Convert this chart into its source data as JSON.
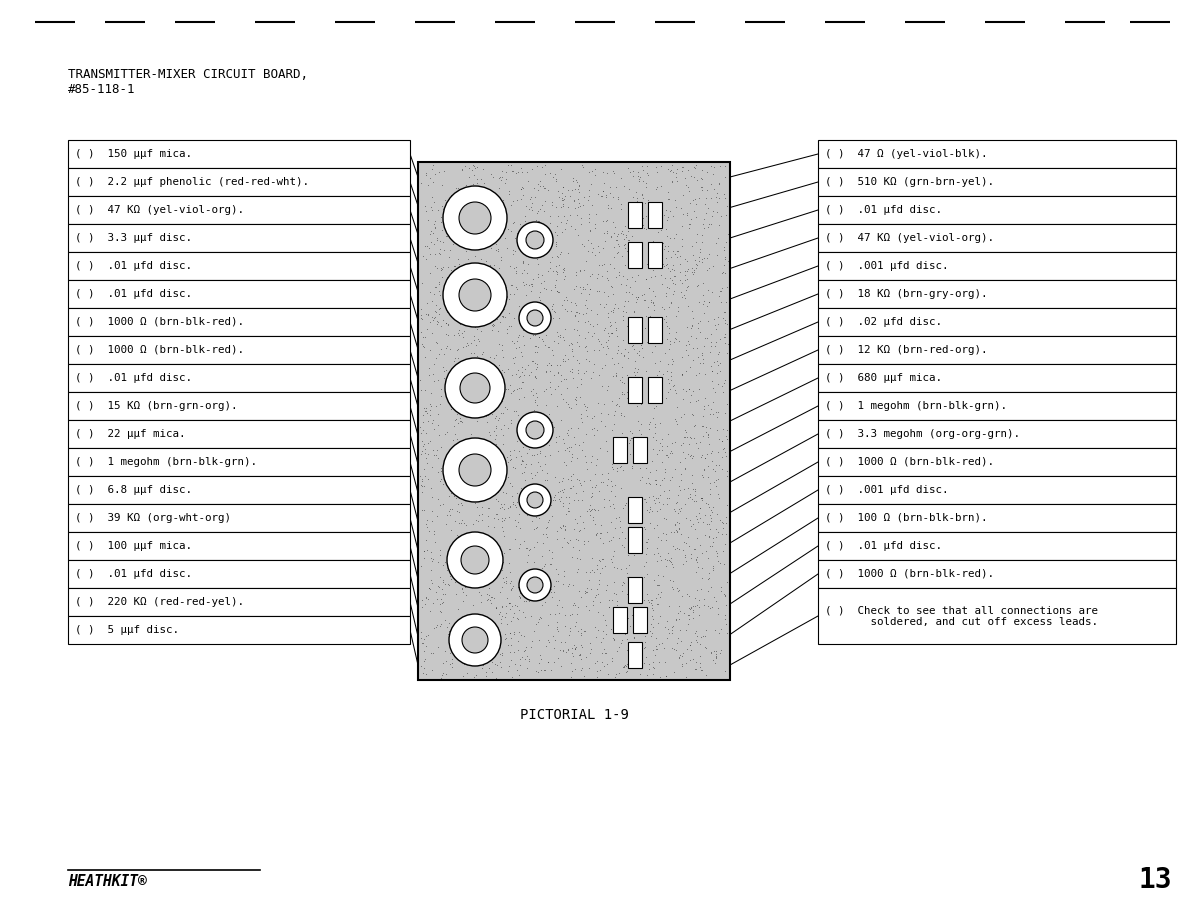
{
  "title_line1": "TRANSMITTER-MIXER CIRCUIT BOARD,",
  "title_line2": "#85-118-1",
  "left_items": [
    "( )  150 μμf mica.",
    "( )  2.2 μμf phenolic (red-red-wht).",
    "( )  47 KΩ (yel-viol-org).",
    "( )  3.3 μμf disc.",
    "( )  .01 μfd disc.",
    "( )  .01 μfd disc.",
    "( )  1000 Ω (brn-blk-red).",
    "( )  1000 Ω (brn-blk-red).",
    "( )  .01 μfd disc.",
    "( )  15 KΩ (brn-grn-org).",
    "( )  22 μμf mica.",
    "( )  1 megohm (brn-blk-grn).",
    "( )  6.8 μμf disc.",
    "( )  39 KΩ (org-wht-org)",
    "( )  100 μμf mica.",
    "( )  .01 μfd disc.",
    "( )  220 KΩ (red-red-yel).",
    "( )  5 μμf disc."
  ],
  "right_items": [
    "( )  47 Ω (yel-viol-blk).",
    "( )  510 KΩ (grn-brn-yel).",
    "( )  .01 μfd disc.",
    "( )  47 KΩ (yel-viol-org).",
    "( )  .001 μfd disc.",
    "( )  18 KΩ (brn-gry-org).",
    "( )  .02 μfd disc.",
    "( )  12 KΩ (brn-red-org).",
    "( )  680 μμf mica.",
    "( )  1 megohm (brn-blk-grn).",
    "( )  3.3 megohm (org-org-grn).",
    "( )  1000 Ω (brn-blk-red).",
    "( )  .001 μfd disc.",
    "( )  100 Ω (brn-blk-brn).",
    "( )  .01 μfd disc.",
    "( )  1000 Ω (brn-blk-red).",
    "( )  Check to see that all connections are\n       soldered, and cut off excess leads."
  ],
  "pictorial_label": "PICTORIAL 1-9",
  "page_number": "13",
  "heathkit_label": "HEATHKIT®",
  "bg_color": "#ffffff",
  "text_color": "#000000",
  "box_color": "#000000"
}
